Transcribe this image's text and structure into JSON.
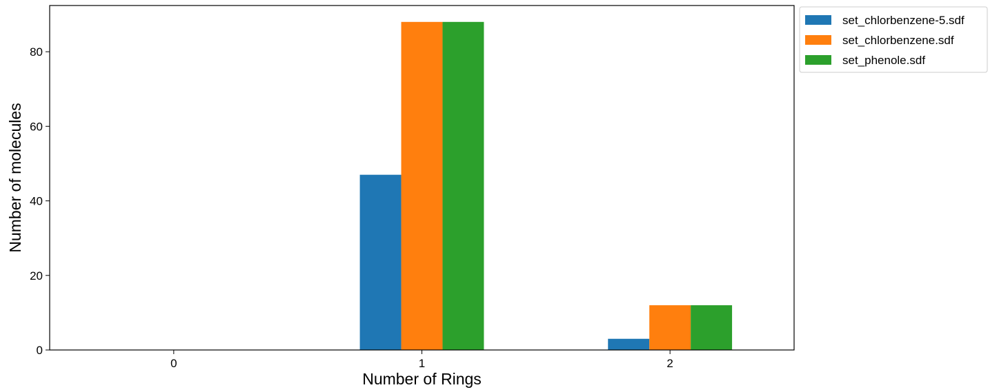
{
  "chart_data": {
    "type": "bar",
    "categories": [
      "0",
      "1",
      "2"
    ],
    "series": [
      {
        "name": "set_chlorbenzene-5.sdf",
        "values": [
          0,
          47,
          3
        ],
        "color": "#1f77b4"
      },
      {
        "name": "set_chlorbenzene.sdf",
        "values": [
          0,
          88,
          12
        ],
        "color": "#ff7f0e"
      },
      {
        "name": "set_phenole.sdf",
        "values": [
          0,
          88,
          12
        ],
        "color": "#2ca02c"
      }
    ],
    "xlabel": "Number of Rings",
    "ylabel": "Number of molecules",
    "ylim": [
      0,
      92.4
    ],
    "yticks": [
      "0",
      "20",
      "40",
      "60",
      "80"
    ],
    "grid": false,
    "legend_position": "outside top-right"
  }
}
